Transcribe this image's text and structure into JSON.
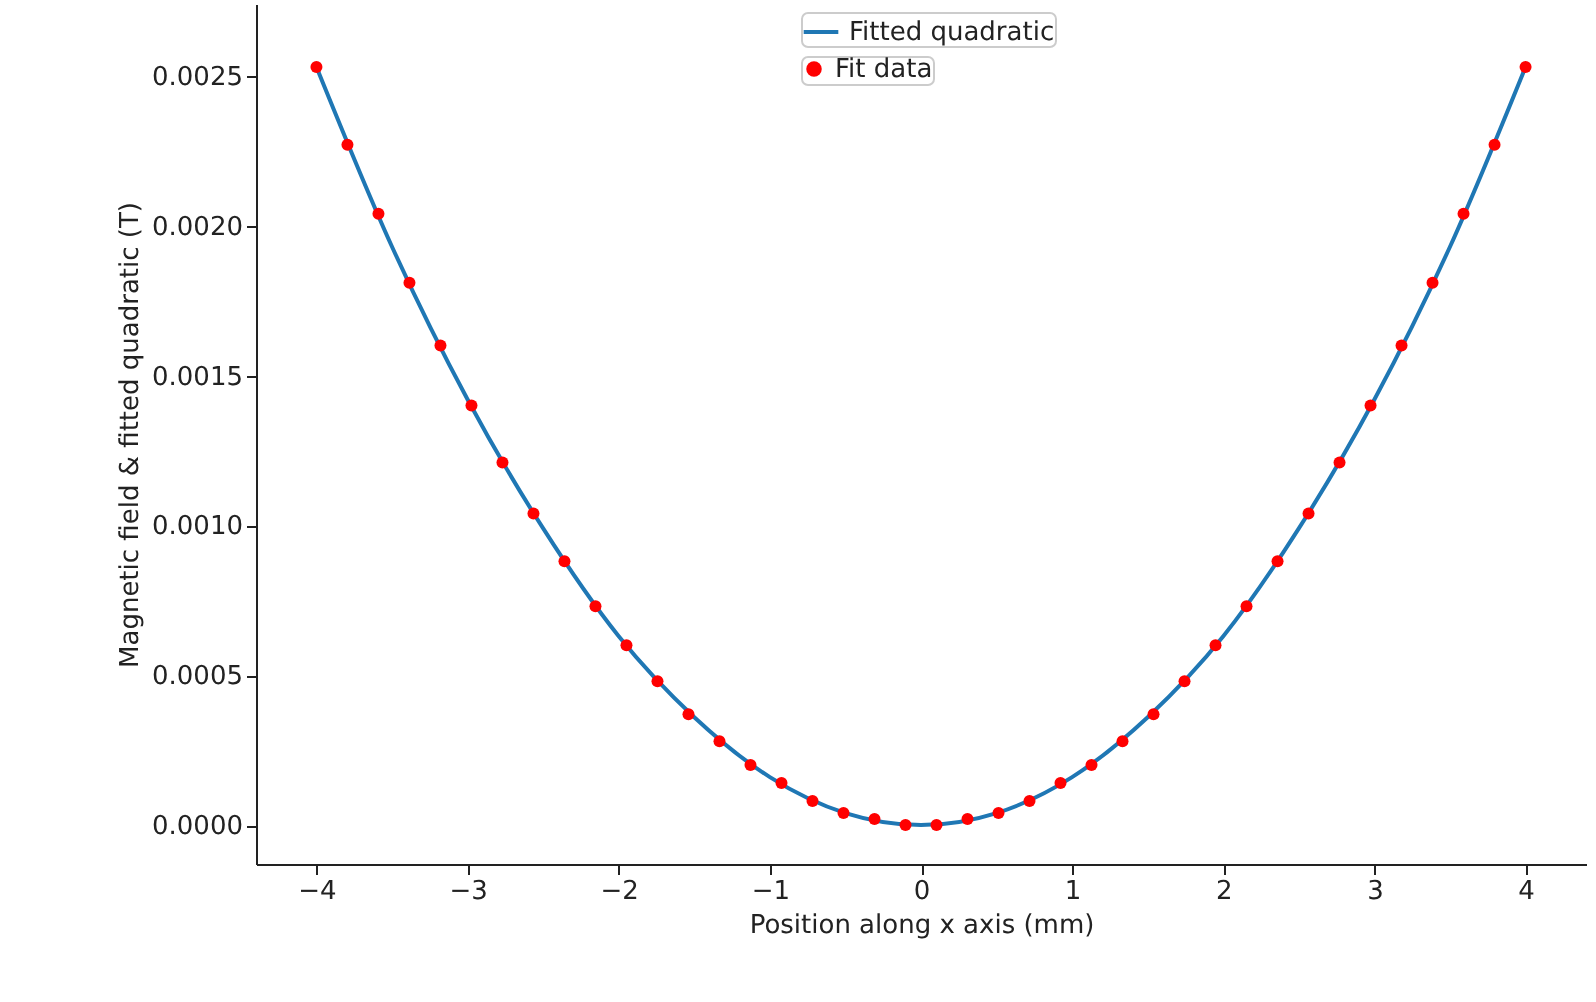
{
  "chart_data": {
    "type": "line",
    "xlabel": "Position along x axis (mm)",
    "ylabel": "Magnetic field & fitted quadratic (T)",
    "series": [
      {
        "name": "Fitted quadratic",
        "color": "#1f77b4",
        "marker": "none",
        "line_style": "solid",
        "x": [
          -4,
          -3.5,
          -3,
          -2.5,
          -2,
          -1.5,
          -1,
          -0.5,
          0,
          0.5,
          1,
          1.5,
          2,
          2.5,
          3,
          3.5,
          4
        ],
        "values": [
          0.00253,
          0.00193,
          0.00142,
          0.00099,
          0.00063,
          0.00036,
          0.00016,
          4e-05,
          0,
          4e-05,
          0.00016,
          0.00036,
          0.00063,
          0.00099,
          0.00142,
          0.00193,
          0.00253
        ]
      },
      {
        "name": "Fit data",
        "type": "scatter",
        "color": "#ff0000",
        "marker": "circle",
        "x": [
          -4.0,
          -3.7949,
          -3.5897,
          -3.3846,
          -3.1795,
          -2.9744,
          -2.7692,
          -2.5641,
          -2.359,
          -2.1538,
          -1.9487,
          -1.7436,
          -1.5385,
          -1.3333,
          -1.1282,
          -0.9231,
          -0.7179,
          -0.5128,
          -0.3077,
          -0.1026,
          0.1026,
          0.3077,
          0.5128,
          0.7179,
          0.9231,
          1.1282,
          1.3333,
          1.5385,
          1.7436,
          1.9487,
          2.1538,
          2.359,
          2.5641,
          2.7692,
          2.9744,
          3.1795,
          3.3846,
          3.5897,
          3.7949,
          4.0
        ],
        "values": [
          0.00253,
          0.00227,
          0.00204,
          0.00181,
          0.0016,
          0.0014,
          0.00121,
          0.00104,
          0.00088,
          0.00073,
          0.0006,
          0.00048,
          0.00037,
          0.00028,
          0.0002,
          0.00014,
          8e-05,
          4e-05,
          2e-05,
          0,
          0,
          2e-05,
          4e-05,
          8e-05,
          0.00014,
          0.0002,
          0.00028,
          0.00037,
          0.00048,
          0.0006,
          0.00073,
          0.00088,
          0.00104,
          0.00121,
          0.0014,
          0.0016,
          0.00181,
          0.00204,
          0.00227,
          0.00253
        ]
      }
    ],
    "xlim": [
      -4.4,
      4.4
    ],
    "xticks": [
      {
        "value": -4,
        "label": "−4"
      },
      {
        "value": -3,
        "label": "−3"
      },
      {
        "value": -2,
        "label": "−2"
      },
      {
        "value": -1,
        "label": "−1"
      },
      0,
      1,
      2,
      3,
      4
    ],
    "ylim": [
      -0.00013,
      0.00274
    ],
    "yticks": [
      {
        "value": 0,
        "label": "0.0000"
      },
      0.0005,
      {
        "value": 0.001,
        "label": "0.0010"
      },
      {
        "value": 0.0015,
        "label": "0.0015"
      },
      {
        "value": 0.002,
        "label": "0.0020"
      },
      0.0025
    ],
    "grid": false,
    "legend": "top"
  }
}
